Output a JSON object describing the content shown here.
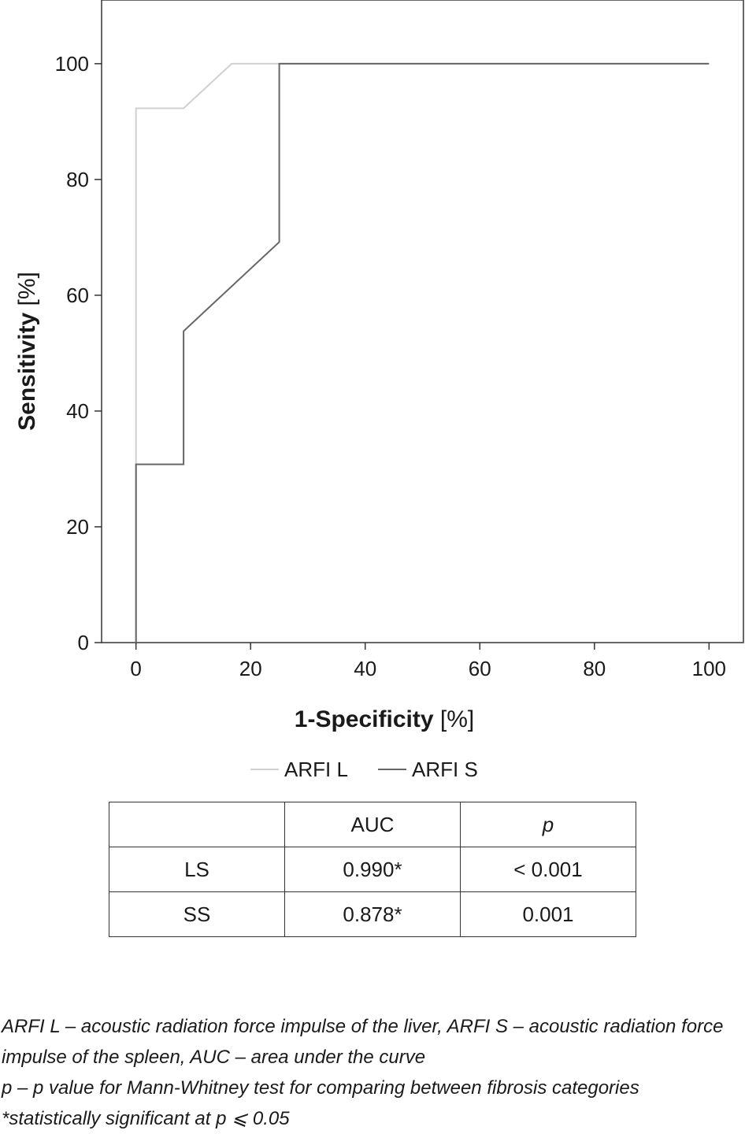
{
  "chart_data": {
    "type": "line",
    "xlabel": "1-Specificity",
    "xunit": "[%]",
    "ylabel": "Sensitivity",
    "yunit": "[%]",
    "xlim": [
      -6,
      106
    ],
    "ylim": [
      0,
      111
    ],
    "xticks": [
      0,
      20,
      40,
      60,
      80,
      100
    ],
    "yticks": [
      0,
      20,
      40,
      60,
      80,
      100
    ],
    "grid": false,
    "legend_position": "bottom-center",
    "series": [
      {
        "name": "ARFI L",
        "color": "#d0d0d0",
        "x": [
          0,
          0,
          8.3,
          16.7,
          100
        ],
        "y": [
          0,
          92.3,
          92.3,
          100,
          100
        ]
      },
      {
        "name": "ARFI S",
        "color": "#666666",
        "x": [
          0,
          0,
          8.3,
          8.3,
          25,
          25,
          100
        ],
        "y": [
          0,
          30.8,
          30.8,
          53.8,
          69.2,
          100,
          100
        ]
      }
    ]
  },
  "table": {
    "headers": [
      "",
      "AUC",
      "p"
    ],
    "rows": [
      [
        "LS",
        "0.990*",
        "< 0.001"
      ],
      [
        "SS",
        "0.878*",
        "0.001"
      ]
    ]
  },
  "footnotes": [
    "ARFI L – acoustic radiation force impulse of the liver, ARFI S – acoustic radiation force impulse of the spleen, AUC – area under the curve",
    "p – p value for Mann-Whitney test for comparing between fibrosis categories",
    "*statistically significant at p ⩽ 0.05"
  ]
}
